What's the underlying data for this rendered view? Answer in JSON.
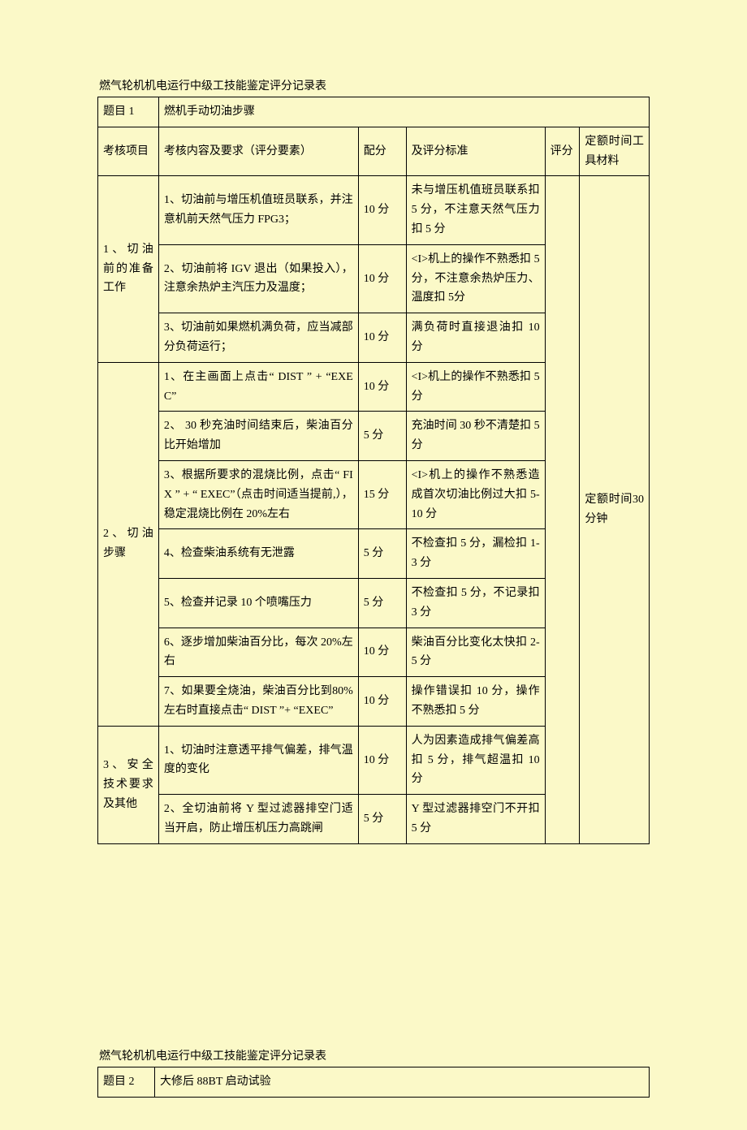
{
  "table1": {
    "title": "燃气轮机机电运行中级工技能鉴定评分记录表",
    "topic_label": "题目 1",
    "topic_value": "燃机手动切油步骤",
    "headers": {
      "item": "考核项目",
      "content": "考核内容及要求（评分要素）",
      "points": "配分",
      "criteria": "及评分标准",
      "score": "评分",
      "time": "定额时间工具材料"
    },
    "time_note": "定额时间30 分钟",
    "sections": [
      {
        "name": "1、切油前的准备工作",
        "rows": [
          {
            "content": "1、切油前与增压机值班员联系，并注意机前天然气压力 FPG3；",
            "points": "10 分",
            "criteria": "未与增压机值班员联系扣 5 分，不注意天然气压力扣 5 分"
          },
          {
            "content": "2、切油前将 IGV 退出（如果投入），注意余热炉主汽压力及温度；",
            "points": "10 分",
            "criteria": "<I>机上的操作不熟悉扣 5 分，不注意余热炉压力、温度扣 5分"
          },
          {
            "content": "3、切油前如果燃机满负荷，应当减部分负荷运行；",
            "points": "10 分",
            "criteria": "满负荷时直接退油扣 10 分"
          }
        ]
      },
      {
        "name": "2、切油步骤",
        "rows": [
          {
            "content": "1、在主画面上点击“ DIST ” + “EXEC”",
            "points": "10 分",
            "criteria": "<I>机上的操作不熟悉扣 5 分"
          },
          {
            "content": "2、 30 秒充油时间结束后，柴油百分比开始增加",
            "points": "5 分",
            "criteria": "充油时间 30 秒不清楚扣 5 分"
          },
          {
            "content": "3、根据所要求的混烧比例，点击“ FIX ” + “ EXEC”（点击时间适当提前,），稳定混烧比例在 20%左右",
            "points": "15 分",
            "criteria": "<I>机上的操作不熟悉造成首次切油比例过大扣 5-10 分"
          },
          {
            "content": "4、检查柴油系统有无泄露",
            "points": "5 分",
            "criteria": "不检查扣 5 分，漏检扣 1-3 分"
          },
          {
            "content": "5、检查并记录 10 个喷嘴压力",
            "points": "5 分",
            "criteria": "不检查扣 5 分，不记录扣 3 分"
          },
          {
            "content": "6、逐步增加柴油百分比，每次 20%左右",
            "points": "10 分",
            "criteria": "柴油百分比变化太快扣 2-5 分"
          },
          {
            "content": "7、如果要全烧油，柴油百分比到80%左右时直接点击“ DIST ”+ “EXEC”",
            "points": "10 分",
            "criteria": "操作错误扣 10 分，操作不熟悉扣 5 分"
          }
        ]
      },
      {
        "name": "3、安全技术要求及其他",
        "rows": [
          {
            "content": "1、切油时注意透平排气偏差，排气温度的变化",
            "points": "10 分",
            "criteria": "人为因素造成排气偏差高扣 5 分，排气超温扣 10 分"
          },
          {
            "content": "2、全切油前将 Y 型过滤器排空门适当开启，防止增压机压力高跳闸",
            "points": "5 分",
            "criteria": "Y 型过滤器排空门不开扣 5 分"
          }
        ]
      }
    ]
  },
  "table2": {
    "title": "燃气轮机机电运行中级工技能鉴定评分记录表",
    "topic_label": "题目 2",
    "topic_value": "大修后 88BT 启动试验"
  }
}
